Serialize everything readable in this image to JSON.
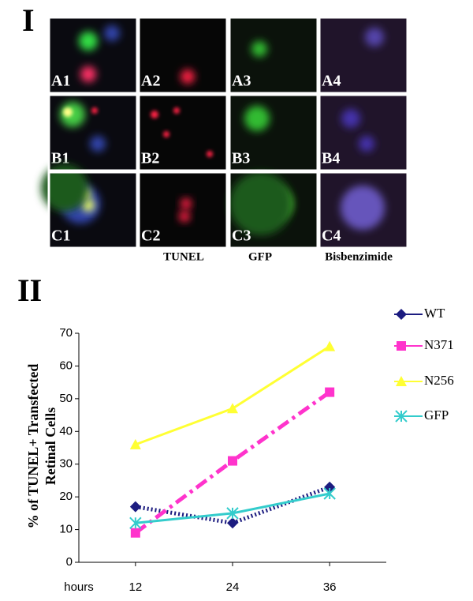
{
  "panels": {
    "section_label": "I",
    "labels": [
      [
        "A1",
        "A2",
        "A3",
        "A4"
      ],
      [
        "B1",
        "B2",
        "B3",
        "B4"
      ],
      [
        "C1",
        "C2",
        "C3",
        "C4"
      ]
    ],
    "channel_labels": [
      "TUNEL",
      "GFP",
      "Bisbenzimide"
    ]
  },
  "chart_data": {
    "type": "line",
    "section_label": "II",
    "ylabel": [
      "% of TUNEL+ Transfected",
      "Retinal Cells"
    ],
    "xlabel": "hours",
    "x": [
      12,
      24,
      36
    ],
    "xlim": [
      5,
      43
    ],
    "xticks": [
      12,
      24,
      36
    ],
    "ylim": [
      0,
      70
    ],
    "yticks": [
      0,
      10,
      20,
      30,
      40,
      50,
      60,
      70
    ],
    "series": [
      {
        "name": "WT",
        "color": "#1c1c80",
        "linestyle": "dotted",
        "marker": "diamond",
        "values": [
          17,
          12,
          23
        ]
      },
      {
        "name": "N371",
        "color": "#ff33cc",
        "linestyle": "dashdot",
        "marker": "square",
        "values": [
          9,
          31,
          52
        ]
      },
      {
        "name": "N256",
        "color": "#ffff33",
        "linestyle": "solid",
        "marker": "triangle",
        "values": [
          36,
          47,
          66
        ]
      },
      {
        "name": "GFP",
        "color": "#33cccc",
        "linestyle": "solid",
        "marker": "x",
        "values": [
          12,
          15,
          21
        ]
      }
    ]
  }
}
